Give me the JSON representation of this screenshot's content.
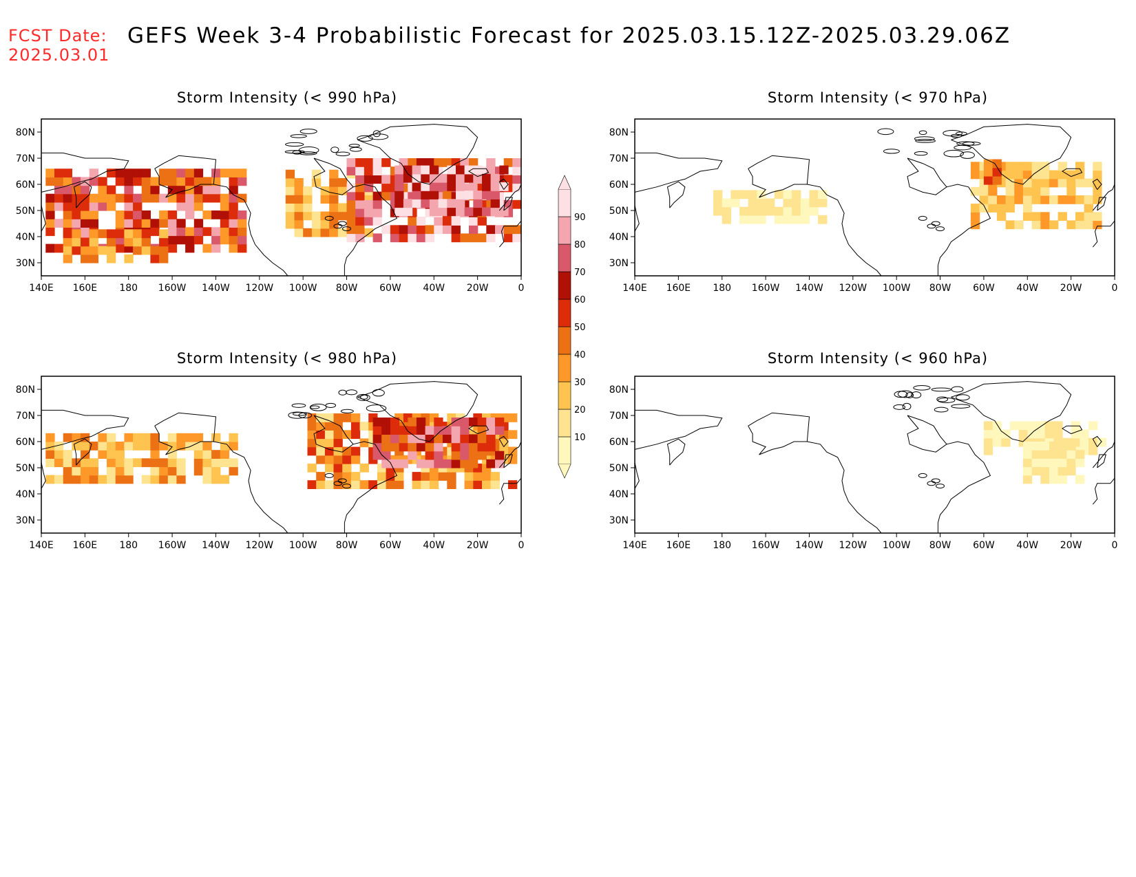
{
  "header": {
    "fcst_label": "FCST Date:",
    "fcst_date": "2025.03.01",
    "title": "GEFS Week 3-4 Probabilistic Forecast for 2025.03.15.12Z-2025.03.29.06Z"
  },
  "axes": {
    "lat_labels": [
      "80N",
      "70N",
      "60N",
      "50N",
      "40N",
      "30N"
    ],
    "lon_labels": [
      "140E",
      "160E",
      "180",
      "160W",
      "140W",
      "120W",
      "100W",
      "80W",
      "60W",
      "40W",
      "20W",
      "0"
    ]
  },
  "panels": [
    {
      "id": "p990",
      "title": "Storm Intensity (< 990 hPa)",
      "intensity": "high"
    },
    {
      "id": "p970",
      "title": "Storm Intensity (< 970 hPa)",
      "intensity": "medium"
    },
    {
      "id": "p980",
      "title": "Storm Intensity (< 980 hPa)",
      "intensity": "mid-high"
    },
    {
      "id": "p960",
      "title": "Storm Intensity (< 960 hPa)",
      "intensity": "low"
    }
  ],
  "colorbar": {
    "levels": [
      "10",
      "20",
      "30",
      "40",
      "50",
      "60",
      "70",
      "80",
      "90"
    ],
    "colors": [
      "#fff7bc",
      "#fee391",
      "#fec44f",
      "#fe9929",
      "#ec7014",
      "#dd2c0a",
      "#b01005",
      "#d9596a",
      "#f4a6ae",
      "#fde0e4"
    ]
  }
}
